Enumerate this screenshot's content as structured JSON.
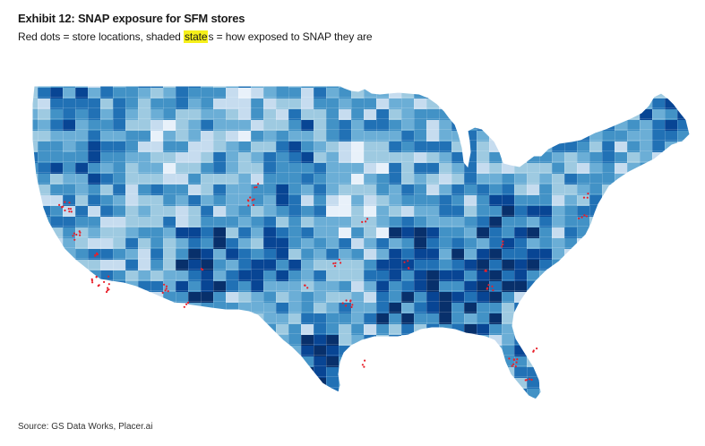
{
  "header": {
    "title": "Exhibit 12: SNAP exposure for SFM stores",
    "subtitle_pre": "Red dots = store locations, shaded ",
    "subtitle_highlight": "state",
    "subtitle_post": "s = how exposed to SNAP they are"
  },
  "source": "Source: GS Data Works, Placer.ai",
  "colors": {
    "exposure_scale": [
      "#e8f1fa",
      "#c6dcef",
      "#9ecae1",
      "#6baed6",
      "#4292c6",
      "#2171b5",
      "#084594",
      "#08306b"
    ],
    "store_dot": "#e8202a",
    "highlight": "#f6f01a"
  },
  "icons": {
    "store_marker": "red-dot"
  }
}
